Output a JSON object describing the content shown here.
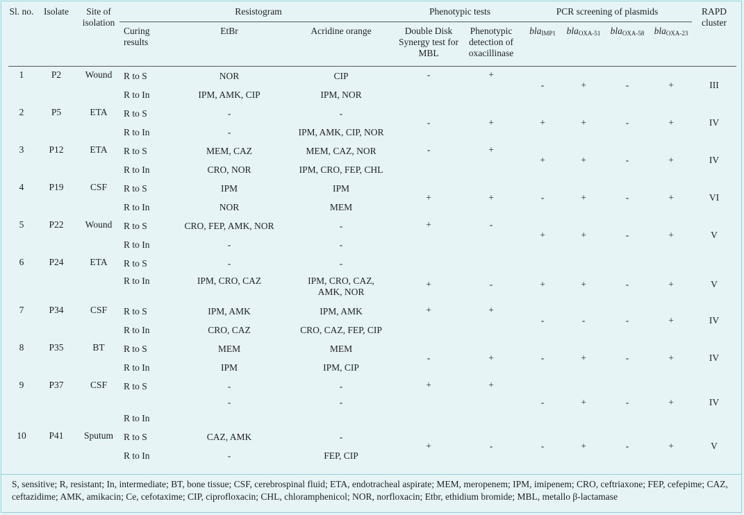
{
  "headers": {
    "sl": "Sl. no.",
    "isolate": "Isolate",
    "site": "Site of isolation",
    "resistogram": "Resistogram",
    "curing": "Curing results",
    "etbr": "EtBr",
    "acridine": "Acridine orange",
    "phenotypic": "Phenotypic tests",
    "ddst": "Double Disk Synergy test for MBL",
    "oxa": "Phenotypic detection of oxacillinase",
    "pcr": "PCR screening of plasmids",
    "bla_prefix": "bla",
    "imp1": "IMP1",
    "oxa51": "OXA-51",
    "oxa58": "OXA-58",
    "oxa23": "OXA-23",
    "rapd": "RAPD cluster"
  },
  "rows": [
    {
      "sl": "1",
      "isolate": "P2",
      "site": "Wound",
      "s_curing": "R to S",
      "s_etbr": "NOR",
      "s_acr": "CIP",
      "i_curing": "R to In",
      "i_etbr": "IPM, AMK, CIP",
      "i_acr": "IPM, NOR",
      "ddst": "-",
      "oxa": "+",
      "imp1": "-",
      "oxa51": "+",
      "oxa58": "-",
      "oxa23": "+",
      "rapd": "III"
    },
    {
      "sl": "2",
      "isolate": "P5",
      "site": "ETA",
      "s_curing": "R to S",
      "s_etbr": "-",
      "s_acr": "-",
      "i_curing": "R to In",
      "i_etbr": "-",
      "i_acr": "IPM, AMK, CIP, NOR",
      "ddst": "-",
      "oxa": "+",
      "imp1": "+",
      "oxa51": "+",
      "oxa58": "-",
      "oxa23": "+",
      "rapd": "IV"
    },
    {
      "sl": "3",
      "isolate": "P12",
      "site": "ETA",
      "s_curing": "R to S",
      "s_etbr": "MEM, CAZ",
      "s_acr": "MEM, CAZ, NOR",
      "i_curing": "R to In",
      "i_etbr": "CRO, NOR",
      "i_acr": "IPM, CRO, FEP, CHL",
      "ddst": "-",
      "oxa": "+",
      "imp1": "+",
      "oxa51": "+",
      "oxa58": "-",
      "oxa23": "+",
      "rapd": "IV"
    },
    {
      "sl": "4",
      "isolate": "P19",
      "site": "CSF",
      "s_curing": "R to S",
      "s_etbr": "IPM",
      "s_acr": "IPM",
      "i_curing": "R to In",
      "i_etbr": "NOR",
      "i_acr": "MEM",
      "ddst": "+",
      "oxa": "+",
      "imp1": "-",
      "oxa51": "+",
      "oxa58": "-",
      "oxa23": "+",
      "rapd": "VI"
    },
    {
      "sl": "5",
      "isolate": "P22",
      "site": "Wound",
      "s_curing": "R to S",
      "s_etbr": "CRO, FEP, AMK, NOR",
      "s_acr": "-",
      "i_curing": "R to In",
      "i_etbr": "-",
      "i_acr": "-",
      "ddst": "+",
      "oxa": "-",
      "imp1": "+",
      "oxa51": "+",
      "oxa58": "-",
      "oxa23": "+",
      "rapd": "V"
    },
    {
      "sl": "6",
      "isolate": "P24",
      "site": "ETA",
      "s_curing": "R to S",
      "s_etbr": "-",
      "s_acr": "-",
      "i_curing": "R to In",
      "i_etbr": "IPM, CRO, CAZ",
      "i_acr": "IPM, CRO, CAZ,",
      "i_acr2": "AMK, NOR",
      "ddst": "+",
      "oxa": "-",
      "imp1": "+",
      "oxa51": "+",
      "oxa58": "-",
      "oxa23": "+",
      "rapd": "V"
    },
    {
      "sl": "7",
      "isolate": "P34",
      "site": "CSF",
      "s_curing": "R to S",
      "s_etbr": "IPM, AMK",
      "s_acr": "IPM, AMK",
      "i_curing": "R to In",
      "i_etbr": "CRO, CAZ",
      "i_acr": "CRO, CAZ, FEP, CIP",
      "ddst": "+",
      "oxa": "+",
      "imp1": "-",
      "oxa51": "-",
      "oxa58": "-",
      "oxa23": "+",
      "rapd": "IV"
    },
    {
      "sl": "8",
      "isolate": "P35",
      "site": "BT",
      "s_curing": "R to S",
      "s_etbr": "MEM",
      "s_acr": "MEM",
      "i_curing": "R to In",
      "i_etbr": "IPM",
      "i_acr": "IPM, CIP",
      "ddst": "-",
      "oxa": "+",
      "imp1": "-",
      "oxa51": "+",
      "oxa58": "-",
      "oxa23": "+",
      "rapd": "IV"
    },
    {
      "sl": "9",
      "isolate": "P37",
      "site": "CSF",
      "s_curing": "R to S",
      "s_etbr": "-",
      "s_acr": "-",
      "m_etbr": "-",
      "m_acr": "-",
      "i_curing": "R to In",
      "ddst": "+",
      "oxa": "+",
      "imp1": "-",
      "oxa51": "+",
      "oxa58": "-",
      "oxa23": "+",
      "rapd": "IV"
    },
    {
      "sl": "10",
      "isolate": "P41",
      "site": "Sputum",
      "s_curing": "R to S",
      "s_etbr": "CAZ, AMK",
      "s_acr": "-",
      "i_curing": "R to In",
      "i_etbr": "-",
      "i_acr": "FEP, CIP",
      "ddst": "+",
      "oxa": "-",
      "imp1": "-",
      "oxa51": "+",
      "oxa58": "-",
      "oxa23": "+",
      "rapd": "V"
    }
  ],
  "footnote": "S, sensitive; R, resistant; In, intermediate; BT, bone tissue; CSF, cerebrospinal fluid; ETA, endotracheal aspirate; MEM, meropenem; IPM, imipenem; CRO, ceftriaxone; FEP, cefepime; CAZ, ceftazidime; AMK, amikacin; Ce, cefotaxime; CIP, ciprofloxacin; CHL, chloramphenicol; NOR, norfloxacin; Etbr, ethidium bromide; MBL, metallo β-lactamase"
}
